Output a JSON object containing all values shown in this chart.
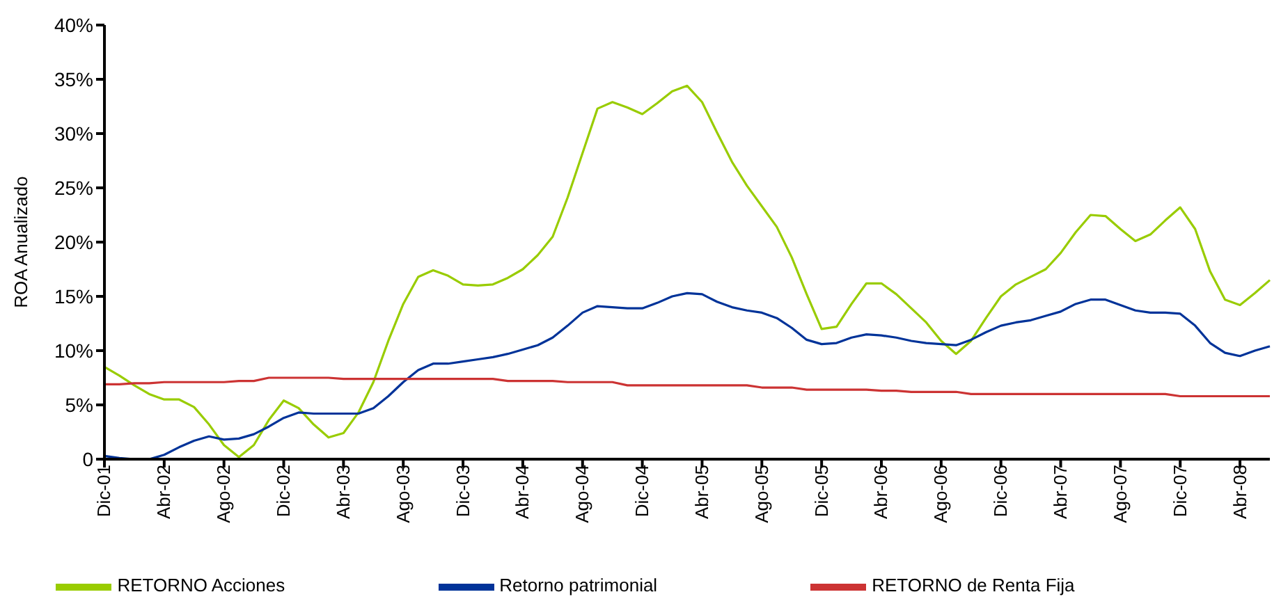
{
  "chart_data": {
    "type": "line",
    "ylabel": "ROA Anualizado",
    "categories": [
      "Dic-01",
      null,
      null,
      null,
      "Abr-02",
      null,
      null,
      null,
      "Ago-02",
      null,
      null,
      null,
      "Dic-02",
      null,
      null,
      null,
      "Abr-03",
      null,
      null,
      null,
      "Ago-03",
      null,
      null,
      null,
      "Dic-03",
      null,
      null,
      null,
      "Abr-04",
      null,
      null,
      null,
      "Ago-04",
      null,
      null,
      null,
      "Dic-04",
      null,
      null,
      null,
      "Abr-05",
      null,
      null,
      null,
      "Ago-05",
      null,
      null,
      null,
      "Dic-05",
      null,
      null,
      null,
      "Abr-06",
      null,
      null,
      null,
      "Ago-06",
      null,
      null,
      null,
      "Dic-06",
      null,
      null,
      null,
      "Abr-07",
      null,
      null,
      null,
      "Ago-07",
      null,
      null,
      null,
      "Dic-07",
      null,
      null,
      null,
      "Abr-08",
      null,
      null
    ],
    "series": [
      {
        "name": "RETORNO Acciones",
        "color": "#99cc00",
        "values": [
          8.5,
          7.7,
          6.8,
          6.0,
          5.5,
          5.5,
          4.8,
          3.2,
          1.3,
          0.2,
          1.3,
          3.6,
          5.4,
          4.7,
          3.2,
          2.0,
          2.4,
          4.3,
          7.1,
          10.9,
          14.3,
          16.8,
          17.4,
          16.9,
          16.1,
          16.0,
          16.1,
          16.7,
          17.5,
          18.8,
          20.5,
          24.1,
          28.2,
          32.3,
          32.9,
          32.4,
          31.8,
          32.8,
          33.9,
          34.4,
          32.9,
          30.1,
          27.4,
          25.2,
          23.3,
          21.4,
          18.6,
          15.2,
          12.0,
          12.2,
          14.3,
          16.2,
          16.2,
          15.2,
          13.9,
          12.6,
          10.9,
          9.7,
          10.9,
          13.0,
          15.0,
          16.1,
          16.8,
          17.5,
          19.0,
          20.9,
          22.5,
          22.4,
          21.2,
          20.1,
          20.7,
          22.0,
          23.2,
          21.2,
          17.3,
          14.7,
          14.2,
          15.3,
          16.5
        ]
      },
      {
        "name": "Retorno patrimonial",
        "color": "#003399",
        "values": [
          0.3,
          0.1,
          0,
          0,
          0.4,
          1.1,
          1.7,
          2.1,
          1.8,
          1.9,
          2.3,
          3.0,
          3.8,
          4.3,
          4.2,
          4.2,
          4.2,
          4.2,
          4.7,
          5.8,
          7.1,
          8.2,
          8.8,
          8.8,
          9.0,
          9.2,
          9.4,
          9.7,
          10.1,
          10.5,
          11.2,
          12.3,
          13.5,
          14.1,
          14.0,
          13.9,
          13.9,
          14.4,
          15.0,
          15.3,
          15.2,
          14.5,
          14.0,
          13.7,
          13.5,
          13.0,
          12.1,
          11.0,
          10.6,
          10.7,
          11.2,
          11.5,
          11.4,
          11.2,
          10.9,
          10.7,
          10.6,
          10.5,
          11.0,
          11.7,
          12.3,
          12.6,
          12.8,
          13.2,
          13.6,
          14.3,
          14.7,
          14.7,
          14.2,
          13.7,
          13.5,
          13.5,
          13.4,
          12.3,
          10.7,
          9.8,
          9.5,
          10.0,
          10.4
        ]
      },
      {
        "name": "RETORNO de Renta Fija",
        "color": "#cc3333",
        "values": [
          6.9,
          6.9,
          7.0,
          7.0,
          7.1,
          7.1,
          7.1,
          7.1,
          7.1,
          7.2,
          7.2,
          7.5,
          7.5,
          7.5,
          7.5,
          7.5,
          7.4,
          7.4,
          7.4,
          7.4,
          7.4,
          7.4,
          7.4,
          7.4,
          7.4,
          7.4,
          7.4,
          7.2,
          7.2,
          7.2,
          7.2,
          7.1,
          7.1,
          7.1,
          7.1,
          6.8,
          6.8,
          6.8,
          6.8,
          6.8,
          6.8,
          6.8,
          6.8,
          6.8,
          6.6,
          6.6,
          6.6,
          6.4,
          6.4,
          6.4,
          6.4,
          6.4,
          6.3,
          6.3,
          6.2,
          6.2,
          6.2,
          6.2,
          6.0,
          6.0,
          6.0,
          6.0,
          6.0,
          6.0,
          6.0,
          6.0,
          6.0,
          6.0,
          6.0,
          6.0,
          6.0,
          6.0,
          5.8,
          5.8,
          5.8,
          5.8,
          5.8,
          5.8,
          5.8
        ]
      }
    ],
    "ylim": [
      0,
      40
    ],
    "yticks": [
      0,
      {
        "value": 5,
        "label": "5%"
      },
      {
        "value": 10,
        "label": "10%"
      },
      {
        "value": 15,
        "label": "15%"
      },
      {
        "value": 20,
        "label": "20%"
      },
      {
        "value": 25,
        "label": "25%"
      },
      {
        "value": 30,
        "label": "30%"
      },
      {
        "value": 35,
        "label": "35%"
      },
      {
        "value": 40,
        "label": "40%"
      }
    ],
    "grid": false,
    "legend": "bottom",
    "marker": "none",
    "line_style": "solid"
  }
}
